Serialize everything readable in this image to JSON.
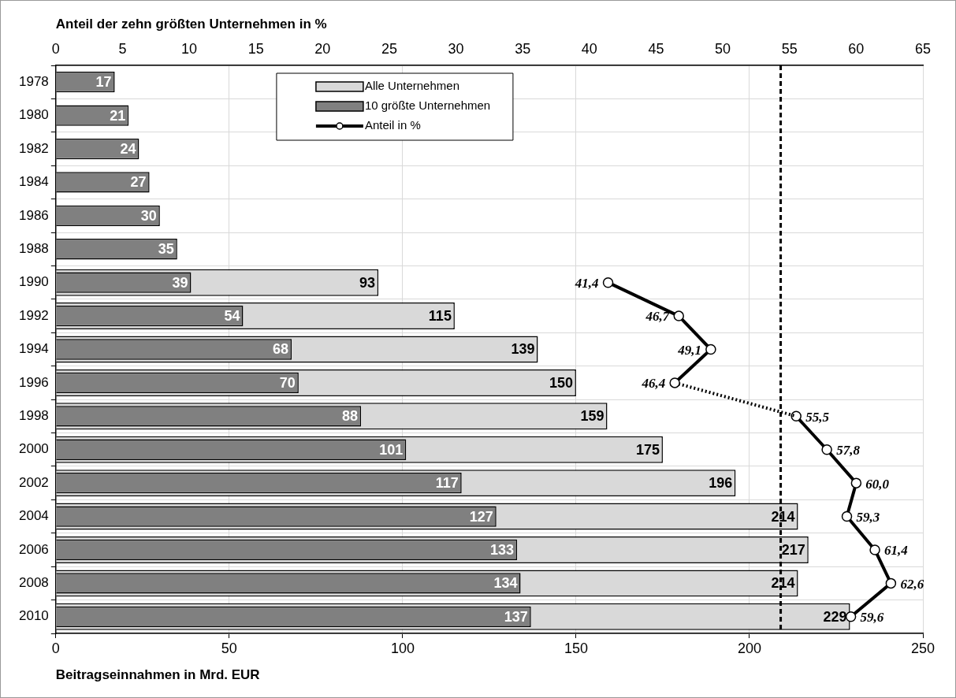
{
  "chart_data": {
    "type": "bar",
    "orientation": "horizontal",
    "x2label": "Anteil der zehn größten Unternehmen in %",
    "xlabel": "Beitragseinnahmen in Mrd. EUR",
    "categories": [
      "1978",
      "1980",
      "1982",
      "1984",
      "1986",
      "1988",
      "1990",
      "1992",
      "1994",
      "1996",
      "1998",
      "2000",
      "2002",
      "2004",
      "2006",
      "2008",
      "2010"
    ],
    "series": [
      {
        "name": "Alle Unternehmen",
        "color": "#d9d9d9",
        "values": [
          null,
          null,
          null,
          null,
          null,
          null,
          93,
          115,
          139,
          150,
          159,
          175,
          196,
          214,
          217,
          214,
          229
        ]
      },
      {
        "name": "10 größte Unternehmen",
        "color": "#808080",
        "values": [
          17,
          21,
          24,
          27,
          30,
          35,
          39,
          54,
          68,
          70,
          88,
          101,
          117,
          127,
          133,
          134,
          137
        ]
      },
      {
        "name": "Anteil in %",
        "type": "line",
        "axis": "x2",
        "color": "#000000",
        "marker": "circle",
        "line_style": "solid",
        "values": [
          null,
          null,
          null,
          null,
          null,
          null,
          41.4,
          46.7,
          49.1,
          46.4,
          null,
          null,
          null,
          null,
          null,
          null,
          null
        ],
        "value_labels": [
          null,
          null,
          null,
          null,
          null,
          null,
          "41,4",
          "46,7",
          "49,1",
          "46,4",
          null,
          null,
          null,
          null,
          null,
          null,
          null
        ]
      },
      {
        "type": "line",
        "axis": "x2",
        "color": "#000000",
        "marker": "none",
        "line_style": "dotted",
        "values": [
          null,
          null,
          null,
          null,
          null,
          null,
          null,
          null,
          null,
          46.4,
          55.5,
          null,
          null,
          null,
          null,
          null,
          null
        ],
        "value_labels": [
          null,
          null,
          null,
          null,
          null,
          null,
          null,
          null,
          null,
          null,
          null,
          null,
          null,
          null,
          null,
          null,
          null
        ]
      },
      {
        "type": "line",
        "axis": "x2",
        "color": "#000000",
        "marker": "circle",
        "line_style": "solid",
        "values": [
          null,
          null,
          null,
          null,
          null,
          null,
          null,
          null,
          null,
          null,
          55.5,
          57.8,
          60.0,
          59.3,
          61.4,
          62.6,
          59.6
        ],
        "value_labels": [
          null,
          null,
          null,
          null,
          null,
          null,
          null,
          null,
          null,
          null,
          "55,5",
          "57,8",
          "60,0",
          "59,3",
          "61,4",
          "62,6",
          "59,6"
        ]
      }
    ],
    "xlim": [
      0,
      250
    ],
    "xticks": [
      0,
      50,
      100,
      150,
      200,
      250
    ],
    "x2lim": [
      0,
      65
    ],
    "x2ticks": [
      0,
      5,
      10,
      15,
      20,
      25,
      30,
      35,
      40,
      45,
      50,
      55,
      60,
      65
    ],
    "ref_lines": [
      {
        "axis": "x",
        "value": 209,
        "color": "#000000",
        "line_style": "dashed"
      }
    ],
    "data_labels": true,
    "grid": true,
    "legend": "top"
  }
}
